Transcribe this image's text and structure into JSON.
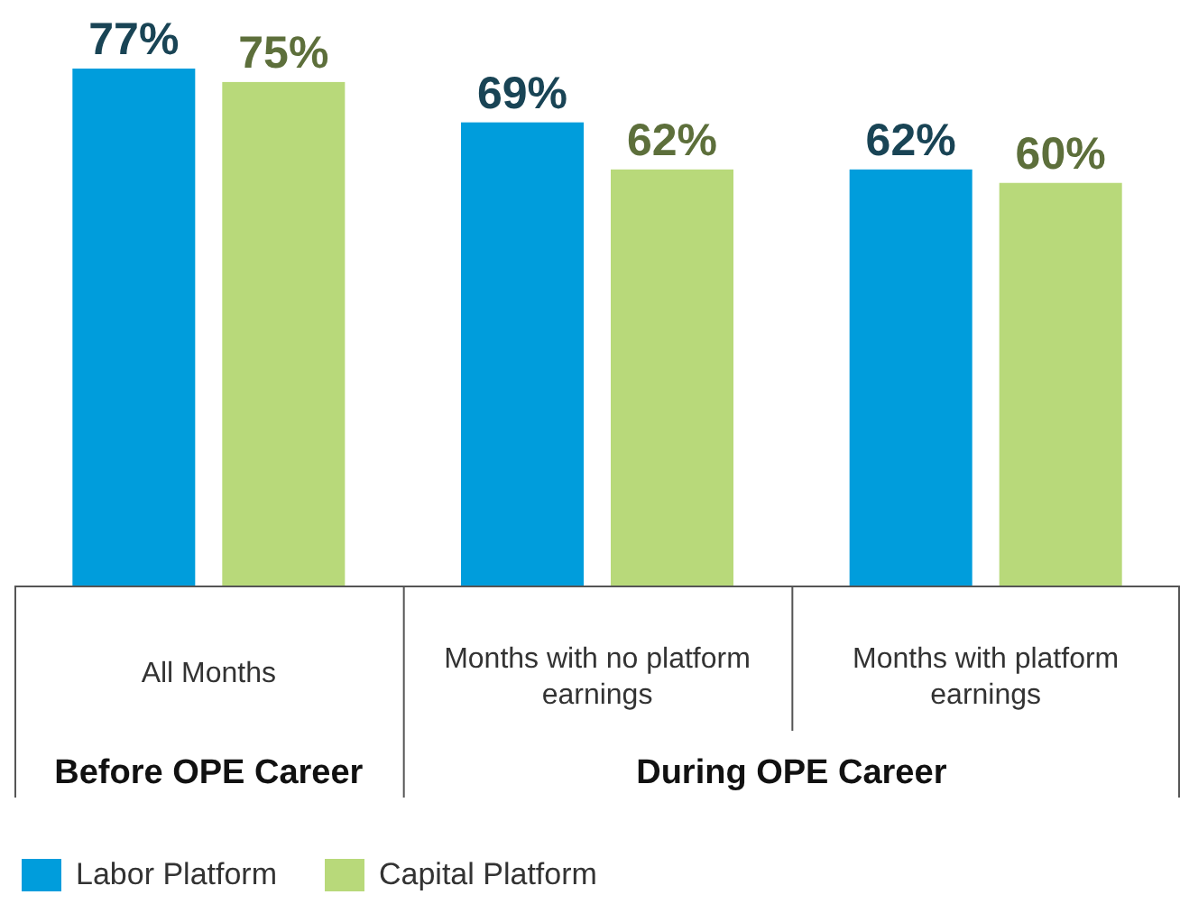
{
  "chart_data": {
    "type": "bar",
    "categories": [
      "All Months",
      "Months with no platform earnings",
      "Months with platform earnings"
    ],
    "series": [
      {
        "name": "Labor Platform",
        "color": "#009ddc",
        "values": [
          77,
          69,
          62
        ],
        "value_labels": [
          "77%",
          "69%",
          "62%"
        ]
      },
      {
        "name": "Capital Platform",
        "color": "#b8d97a",
        "values": [
          75,
          62,
          60
        ],
        "value_labels": [
          "75%",
          "62%",
          "60%"
        ]
      }
    ],
    "annotations": [
      "Before OPE Career",
      "During OPE Career"
    ],
    "legend": "bottom left"
  }
}
